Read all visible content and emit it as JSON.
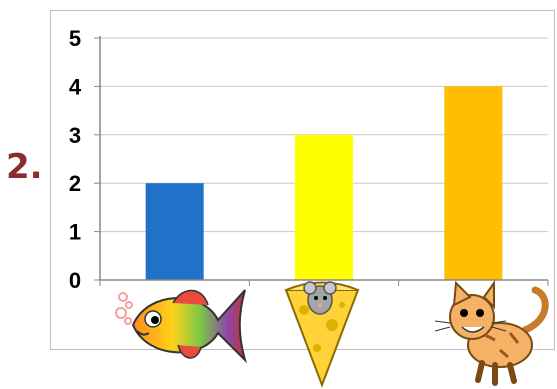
{
  "question_label": "2.",
  "chart_data": {
    "type": "bar",
    "categories": [
      "fish-icon",
      "mouse-cheese-icon",
      "cat-icon"
    ],
    "values": [
      2,
      3,
      4
    ],
    "colors": [
      "#1f72c8",
      "#ffff00",
      "#ffbf00"
    ],
    "ylim": [
      0,
      5
    ],
    "yticks": [
      "0",
      "1",
      "2",
      "3",
      "4",
      "5"
    ],
    "grid": true
  }
}
